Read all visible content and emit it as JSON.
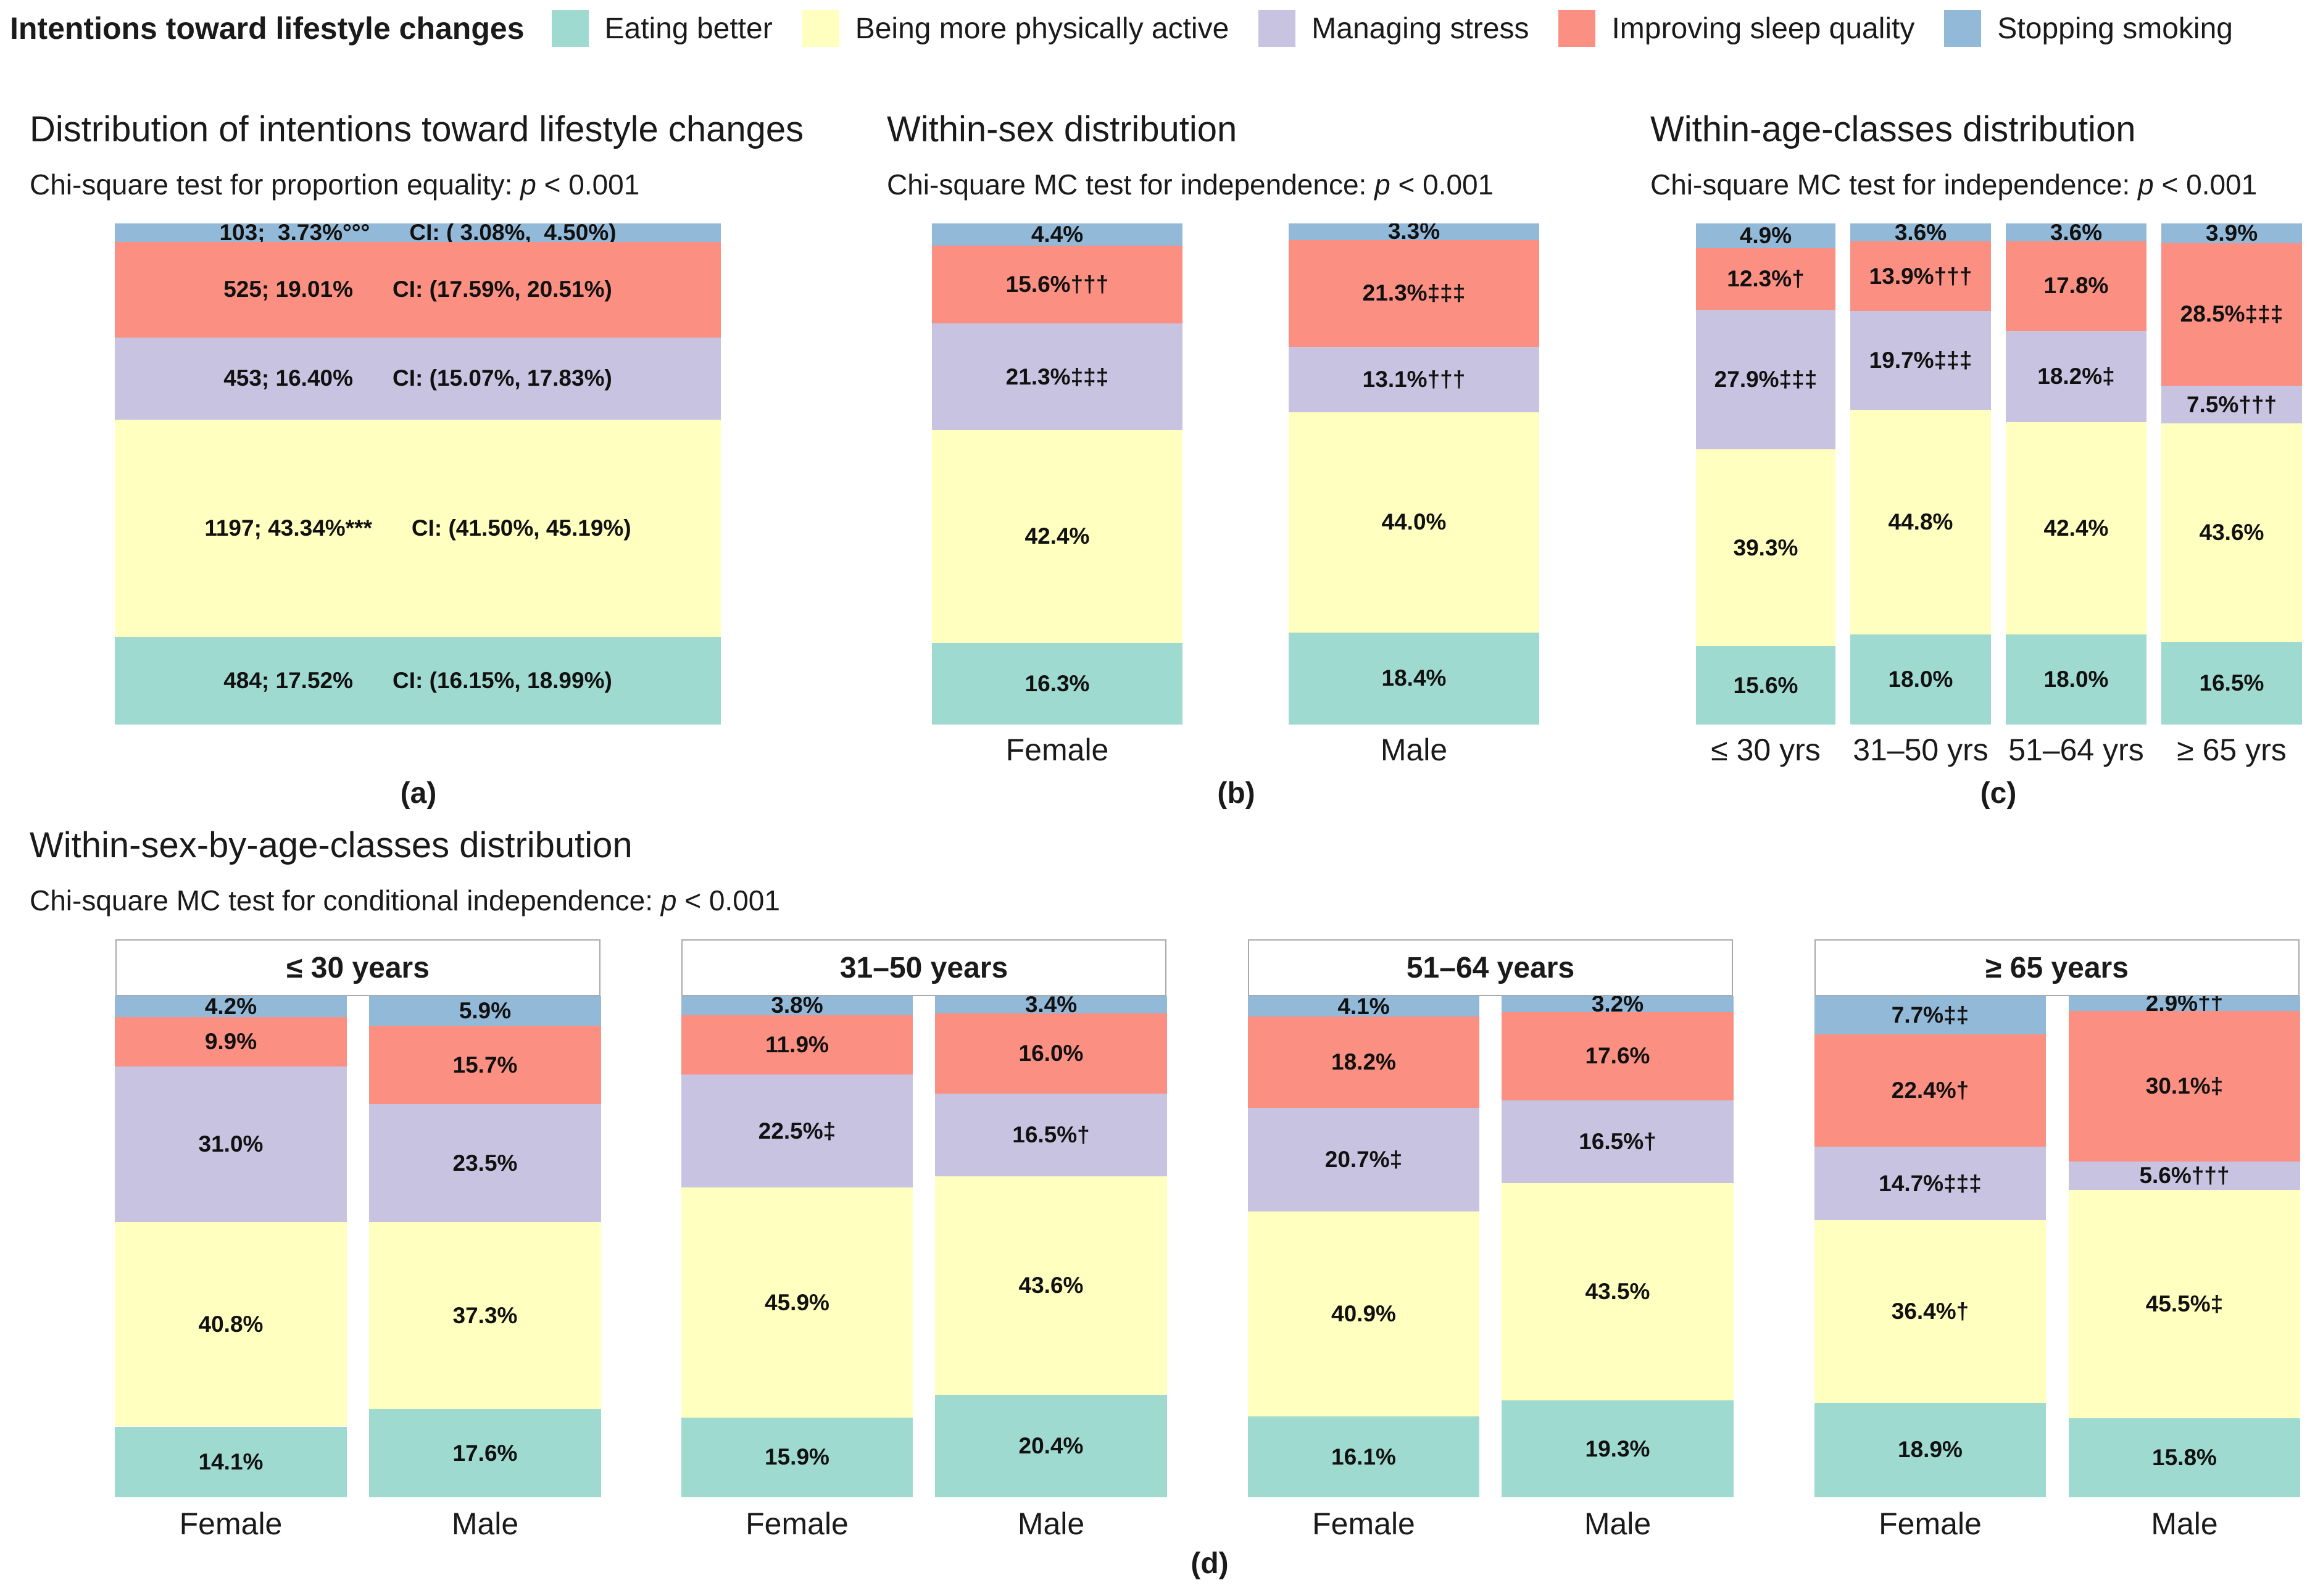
{
  "legend": {
    "title": "Intentions toward lifestyle changes",
    "items": [
      {
        "label": "Eating better",
        "color": "#9fdad0"
      },
      {
        "label": "Being more physically active",
        "color": "#ffffc0"
      },
      {
        "label": "Managing stress",
        "color": "#c8c3e0"
      },
      {
        "label": "Improving sleep quality",
        "color": "#fb9082"
      },
      {
        "label": "Stopping smoking",
        "color": "#93b9d9"
      }
    ]
  },
  "panels": {
    "a": {
      "title": "Distribution of intentions toward lifestyle changes",
      "subtitle_prefix": "Chi-square test for proportion equality:",
      "p_symbol": "p",
      "p_value": "< 0.001",
      "label": "(a)"
    },
    "b": {
      "title": "Within-sex distribution",
      "subtitle_prefix": "Chi-square MC test for independence:",
      "p_symbol": "p",
      "p_value": "< 0.001",
      "label": "(b)"
    },
    "c": {
      "title": "Within-age-classes distribution",
      "subtitle_prefix": "Chi-square MC test for independence:",
      "p_symbol": "p",
      "p_value": "< 0.001",
      "label": "(c)"
    },
    "d": {
      "title": "Within-sex-by-age-classes distribution",
      "subtitle_prefix": "Chi-square MC test for conditional independence:",
      "p_symbol": "p",
      "p_value": "< 0.001",
      "label": "(d)"
    }
  },
  "chart_data": [
    {
      "id": "a",
      "type": "bar",
      "stacked": true,
      "title": "Distribution of intentions toward lifestyle changes",
      "ylim": [
        0,
        100
      ],
      "series_order": [
        "Eating better",
        "Being more physically active",
        "Managing stress",
        "Improving sleep quality",
        "Stopping smoking"
      ],
      "categories": [
        ""
      ],
      "bars": [
        {
          "category": "",
          "values": [
            17.52,
            43.34,
            16.4,
            19.01,
            3.73
          ],
          "labels": [
            "484; 17.52%",
            "1197; 43.34%***",
            "453; 16.40%",
            "525; 19.01%",
            "103;  3.73%°°°"
          ],
          "ci": [
            "CI: (16.15%, 18.99%)",
            "CI: (41.50%, 45.19%)",
            "CI: (15.07%, 17.83%)",
            "CI: (17.59%, 20.51%)",
            "CI: ( 3.08%,  4.50%)"
          ]
        }
      ]
    },
    {
      "id": "b",
      "type": "bar",
      "stacked": true,
      "title": "Within-sex distribution",
      "ylim": [
        0,
        100
      ],
      "categories": [
        "Female",
        "Male"
      ],
      "bars": [
        {
          "category": "Female",
          "values": [
            16.3,
            42.4,
            21.3,
            15.6,
            4.4
          ],
          "labels": [
            "16.3%",
            "42.4%",
            "21.3%‡‡‡",
            "15.6%†††",
            "4.4%"
          ]
        },
        {
          "category": "Male",
          "values": [
            18.4,
            44.0,
            13.1,
            21.3,
            3.3
          ],
          "labels": [
            "18.4%",
            "44.0%",
            "13.1%†††",
            "21.3%‡‡‡",
            "3.3%"
          ]
        }
      ]
    },
    {
      "id": "c",
      "type": "bar",
      "stacked": true,
      "title": "Within-age-classes distribution",
      "ylim": [
        0,
        100
      ],
      "categories": [
        "≤ 30 yrs",
        "31–50 yrs",
        "51–64 yrs",
        "≥ 65 yrs"
      ],
      "bars": [
        {
          "category": "≤ 30 yrs",
          "values": [
            15.6,
            39.3,
            27.9,
            12.3,
            4.9
          ],
          "labels": [
            "15.6%",
            "39.3%",
            "27.9%‡‡‡",
            "12.3%†",
            "4.9%"
          ]
        },
        {
          "category": "31–50 yrs",
          "values": [
            18.0,
            44.8,
            19.7,
            13.9,
            3.6
          ],
          "labels": [
            "18.0%",
            "44.8%",
            "19.7%‡‡‡",
            "13.9%†††",
            "3.6%"
          ]
        },
        {
          "category": "51–64 yrs",
          "values": [
            18.0,
            42.4,
            18.2,
            17.8,
            3.6
          ],
          "labels": [
            "18.0%",
            "42.4%",
            "18.2%‡",
            "17.8%",
            "3.6%"
          ]
        },
        {
          "category": "≥ 65 yrs",
          "values": [
            16.5,
            43.6,
            7.5,
            28.5,
            3.9
          ],
          "labels": [
            "16.5%",
            "43.6%",
            "7.5%†††",
            "28.5%‡‡‡",
            "3.9%"
          ]
        }
      ]
    },
    {
      "id": "d",
      "type": "bar",
      "stacked": true,
      "faceted": true,
      "title": "Within-sex-by-age-classes distribution",
      "ylim": [
        0,
        100
      ],
      "facets": [
        {
          "strip": "≤ 30 years",
          "categories": [
            "Female",
            "Male"
          ],
          "bars": [
            {
              "category": "Female",
              "values": [
                14.1,
                40.8,
                31.0,
                9.9,
                4.2
              ],
              "labels": [
                "14.1%",
                "40.8%",
                "31.0%",
                "9.9%",
                "4.2%"
              ]
            },
            {
              "category": "Male",
              "values": [
                17.6,
                37.3,
                23.5,
                15.7,
                5.9
              ],
              "labels": [
                "17.6%",
                "37.3%",
                "23.5%",
                "15.7%",
                "5.9%"
              ]
            }
          ]
        },
        {
          "strip": "31–50 years",
          "categories": [
            "Female",
            "Male"
          ],
          "bars": [
            {
              "category": "Female",
              "values": [
                15.9,
                45.9,
                22.5,
                11.9,
                3.8
              ],
              "labels": [
                "15.9%",
                "45.9%",
                "22.5%‡",
                "11.9%",
                "3.8%"
              ]
            },
            {
              "category": "Male",
              "values": [
                20.4,
                43.6,
                16.5,
                16.0,
                3.4
              ],
              "labels": [
                "20.4%",
                "43.6%",
                "16.5%†",
                "16.0%",
                "3.4%"
              ]
            }
          ]
        },
        {
          "strip": "51–64 years",
          "categories": [
            "Female",
            "Male"
          ],
          "bars": [
            {
              "category": "Female",
              "values": [
                16.1,
                40.9,
                20.7,
                18.2,
                4.1
              ],
              "labels": [
                "16.1%",
                "40.9%",
                "20.7%‡",
                "18.2%",
                "4.1%"
              ]
            },
            {
              "category": "Male",
              "values": [
                19.3,
                43.5,
                16.5,
                17.6,
                3.2
              ],
              "labels": [
                "19.3%",
                "43.5%",
                "16.5%†",
                "17.6%",
                "3.2%"
              ]
            }
          ]
        },
        {
          "strip": "≥ 65 years",
          "categories": [
            "Female",
            "Male"
          ],
          "bars": [
            {
              "category": "Female",
              "values": [
                18.9,
                36.4,
                14.7,
                22.4,
                7.7
              ],
              "labels": [
                "18.9%",
                "36.4%†",
                "14.7%‡‡‡",
                "22.4%†",
                "7.7%‡‡"
              ]
            },
            {
              "category": "Male",
              "values": [
                15.8,
                45.5,
                5.6,
                30.1,
                2.9
              ],
              "labels": [
                "15.8%",
                "45.5%‡",
                "5.6%†††",
                "30.1%‡",
                "2.9%††"
              ]
            }
          ]
        }
      ]
    }
  ]
}
